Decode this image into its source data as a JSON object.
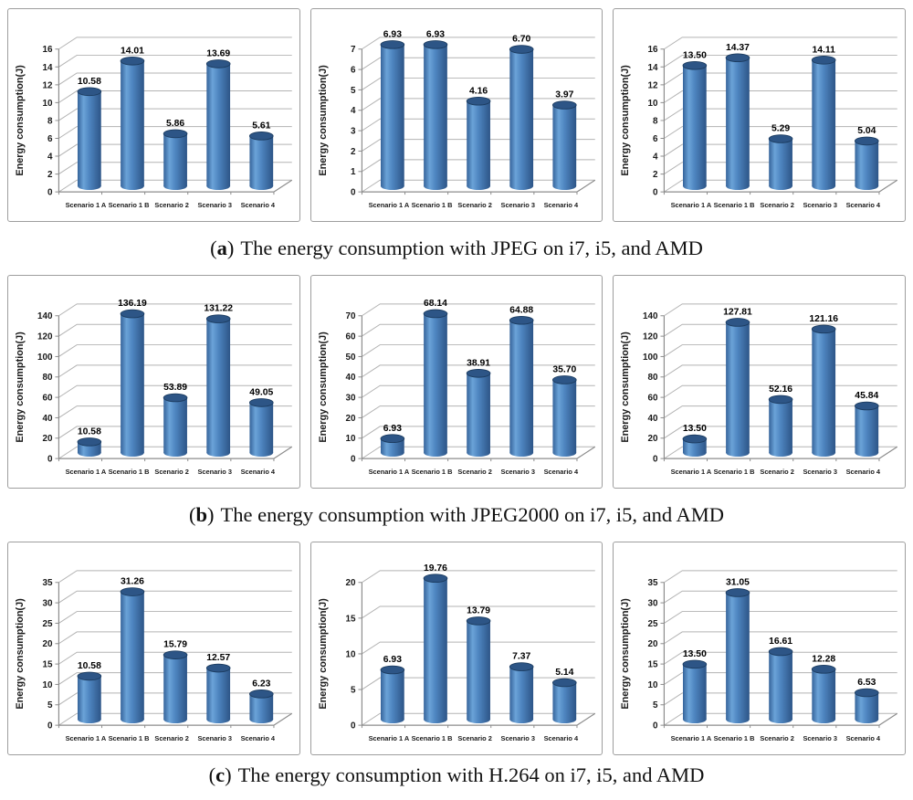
{
  "captions": [
    {
      "letter": "a",
      "text": "The energy consumption with JPEG on i7, i5, and AMD"
    },
    {
      "letter": "b",
      "text": "The energy consumption with JPEG2000 on i7, i5, and AMD"
    },
    {
      "letter": "c",
      "text": "The energy consumption with H.264 on i7, i5, and AMD"
    }
  ],
  "chart_data": [
    {
      "type": "bar",
      "row": "a",
      "codec": "JPEG",
      "processor": "i7",
      "ylabel": "Energy consumption(J)",
      "ylim": [
        0,
        16
      ],
      "ystep": 2,
      "grid": true,
      "legend": false,
      "categories": [
        "Scenario 1 A",
        "Scenario 1 B",
        "Scenario 2",
        "Scenario 3",
        "Scenario 4"
      ],
      "values": [
        10.58,
        14.01,
        5.86,
        13.69,
        5.61
      ],
      "value_labels": [
        "10.58",
        "14.01",
        "5.86",
        "13.69",
        "5.61"
      ]
    },
    {
      "type": "bar",
      "row": "a",
      "codec": "JPEG",
      "processor": "i5",
      "ylabel": "Energy consumption(J)",
      "ylim": [
        0,
        7
      ],
      "ystep": 1,
      "grid": true,
      "legend": false,
      "categories": [
        "Scenario 1 A",
        "Scenario 1 B",
        "Scenario 2",
        "Scenario 3",
        "Scenario 4"
      ],
      "values": [
        6.93,
        6.93,
        4.16,
        6.7,
        3.97
      ],
      "value_labels": [
        "6.93",
        "6.93",
        "4.16",
        "6.70",
        "3.97"
      ]
    },
    {
      "type": "bar",
      "row": "a",
      "codec": "JPEG",
      "processor": "AMD",
      "ylabel": "Energy consumption(J)",
      "ylim": [
        0,
        16
      ],
      "ystep": 2,
      "grid": true,
      "legend": false,
      "categories": [
        "Scenario 1 A",
        "Scenario 1 B",
        "Scenario 2",
        "Scenario 3",
        "Scenario 4"
      ],
      "values": [
        13.5,
        14.37,
        5.29,
        14.11,
        5.04
      ],
      "value_labels": [
        "13.50",
        "14.37",
        "5.29",
        "14.11",
        "5.04"
      ]
    },
    {
      "type": "bar",
      "row": "b",
      "codec": "JPEG2000",
      "processor": "i7",
      "ylabel": "Energy consumption(J)",
      "ylim": [
        0,
        140
      ],
      "ystep": 20,
      "grid": true,
      "legend": false,
      "categories": [
        "Scenario 1 A",
        "Scenario 1 B",
        "Scenario 2",
        "Scenario 3",
        "Scenario 4"
      ],
      "values": [
        10.58,
        136.19,
        53.89,
        131.22,
        49.05
      ],
      "value_labels": [
        "10.58",
        "136.19",
        "53.89",
        "131.22",
        "49.05"
      ]
    },
    {
      "type": "bar",
      "row": "b",
      "codec": "JPEG2000",
      "processor": "i5",
      "ylabel": "Energy consumption(J)",
      "ylim": [
        0,
        70
      ],
      "ystep": 10,
      "grid": true,
      "legend": false,
      "categories": [
        "Scenario 1 A",
        "Scenario 1 B",
        "Scenario 2",
        "Scenario 3",
        "Scenario 4"
      ],
      "values": [
        6.93,
        68.14,
        38.91,
        64.88,
        35.7
      ],
      "value_labels": [
        "6.93",
        "68.14",
        "38.91",
        "64.88",
        "35.70"
      ]
    },
    {
      "type": "bar",
      "row": "b",
      "codec": "JPEG2000",
      "processor": "AMD",
      "ylabel": "Energy consumption(J)",
      "ylim": [
        0,
        140
      ],
      "ystep": 20,
      "grid": true,
      "legend": false,
      "categories": [
        "Scenario 1 A",
        "Scenario 1 B",
        "Scenario 2",
        "Scenario 3",
        "Scenario 4"
      ],
      "values": [
        13.5,
        127.81,
        52.16,
        121.16,
        45.84
      ],
      "value_labels": [
        "13.50",
        "127.81",
        "52.16",
        "121.16",
        "45.84"
      ]
    },
    {
      "type": "bar",
      "row": "c",
      "codec": "H.264",
      "processor": "i7",
      "ylabel": "Energy consumption(J)",
      "ylim": [
        0,
        35
      ],
      "ystep": 5,
      "grid": true,
      "legend": false,
      "categories": [
        "Scenario 1 A",
        "Scenario 1 B",
        "Scenario 2",
        "Scenario 3",
        "Scenario 4"
      ],
      "values": [
        10.58,
        31.26,
        15.79,
        12.57,
        6.23
      ],
      "value_labels": [
        "10.58",
        "31.26",
        "15.79",
        "12.57",
        "6.23"
      ]
    },
    {
      "type": "bar",
      "row": "c",
      "codec": "H.264",
      "processor": "i5",
      "ylabel": "Energy consumption(J)",
      "ylim": [
        0,
        20
      ],
      "ystep": 5,
      "grid": true,
      "legend": false,
      "categories": [
        "Scenario 1 A",
        "Scenario 1 B",
        "Scenario 2",
        "Scenario 3",
        "Scenario 4"
      ],
      "values": [
        6.93,
        19.76,
        13.79,
        7.37,
        5.14
      ],
      "value_labels": [
        "6.93",
        "19.76",
        "13.79",
        "7.37",
        "5.14"
      ]
    },
    {
      "type": "bar",
      "row": "c",
      "codec": "H.264",
      "processor": "AMD",
      "ylabel": "Energy consumption(J)",
      "ylim": [
        0,
        35
      ],
      "ystep": 5,
      "grid": true,
      "legend": false,
      "categories": [
        "Scenario 1 A",
        "Scenario 1 B",
        "Scenario 2",
        "Scenario 3",
        "Scenario 4"
      ],
      "values": [
        13.5,
        31.05,
        16.61,
        12.28,
        6.53
      ],
      "value_labels": [
        "13.50",
        "31.05",
        "16.61",
        "12.28",
        "6.53"
      ]
    }
  ],
  "style": {
    "bar_gradient": [
      "#35639a",
      "#6ba3d8",
      "#4e85c0",
      "#2d5587"
    ],
    "bar_top": "#2d5586",
    "bar_top_stroke": "#1c3c60",
    "grid_color": "#b3b3b3",
    "axis_color": "#8c8c8c",
    "label_color": "#1a1a1a",
    "value_label_color": "#000000",
    "panel_border": "#9e9e9e"
  }
}
